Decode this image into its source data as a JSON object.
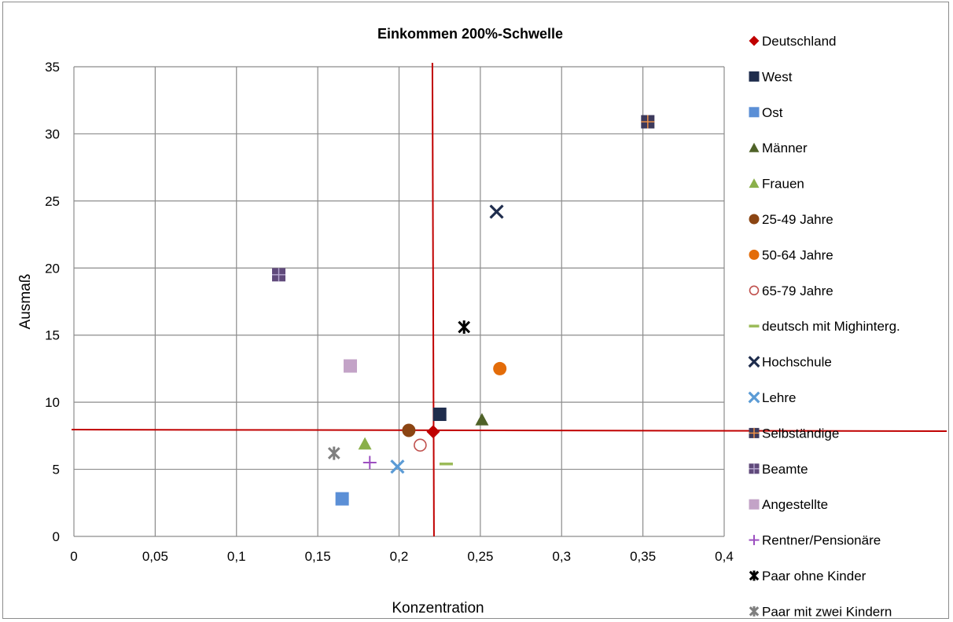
{
  "chart_data": {
    "type": "scatter",
    "title": "Einkommen 200%-Schwelle",
    "xlabel": "Konzentration",
    "ylabel": "Ausmaß",
    "xlim": [
      0,
      0.4
    ],
    "ylim": [
      0,
      35
    ],
    "x_ticks": [
      "0",
      "0,05",
      "0,1",
      "0,15",
      "0,2",
      "0,25",
      "0,3",
      "0,35",
      "0,4"
    ],
    "y_ticks": [
      "0",
      "5",
      "10",
      "15",
      "20",
      "25",
      "30",
      "35"
    ],
    "grid": true,
    "legend_position": "right",
    "reference_lines": {
      "vertical_x": 0.221,
      "horizontal_y": 7.9,
      "color": "#c00000"
    },
    "series": [
      {
        "name": "Deutschland",
        "x": 0.221,
        "y": 7.8,
        "marker": "diamond",
        "color": "#c00000"
      },
      {
        "name": "West",
        "x": 0.225,
        "y": 9.1,
        "marker": "square",
        "color": "#1f2d4d"
      },
      {
        "name": "Ost",
        "x": 0.165,
        "y": 2.8,
        "marker": "square",
        "color": "#5b8fd6"
      },
      {
        "name": "Männer",
        "x": 0.251,
        "y": 8.7,
        "marker": "triangle",
        "color": "#4f6228"
      },
      {
        "name": "Frauen",
        "x": 0.179,
        "y": 6.9,
        "marker": "triangle",
        "color": "#8ab04a"
      },
      {
        "name": "25-49 Jahre",
        "x": 0.206,
        "y": 7.9,
        "marker": "circle",
        "color": "#8b4513"
      },
      {
        "name": "50-64 Jahre",
        "x": 0.262,
        "y": 12.5,
        "marker": "circle",
        "color": "#e36c09"
      },
      {
        "name": "65-79 Jahre",
        "x": 0.213,
        "y": 6.8,
        "marker": "circle-open",
        "color": "#c0504d"
      },
      {
        "name": "deutsch mit Mighinterg.",
        "x": 0.229,
        "y": 5.4,
        "marker": "dash",
        "color": "#9bbb59"
      },
      {
        "name": "Hochschule",
        "x": 0.26,
        "y": 24.2,
        "marker": "x",
        "color": "#1f2d4d"
      },
      {
        "name": "Lehre",
        "x": 0.199,
        "y": 5.2,
        "marker": "x",
        "color": "#5b9bd5"
      },
      {
        "name": "Selbständige",
        "x": 0.353,
        "y": 30.9,
        "marker": "square-plus",
        "color": "#3d3a5c",
        "accent": "#f79646"
      },
      {
        "name": "Beamte",
        "x": 0.126,
        "y": 19.5,
        "marker": "square-plus",
        "color": "#604a7b",
        "accent": "#b7a9d1"
      },
      {
        "name": "Angestellte",
        "x": 0.17,
        "y": 12.7,
        "marker": "square",
        "color": "#c3a3c7"
      },
      {
        "name": "Rentner/Pensionäre",
        "x": 0.182,
        "y": 5.5,
        "marker": "plus",
        "color": "#9c4fc0"
      },
      {
        "name": "Paar ohne Kinder",
        "x": 0.24,
        "y": 15.6,
        "marker": "asterisk",
        "color": "#000000"
      },
      {
        "name": "Paar mit zwei Kindern",
        "x": 0.16,
        "y": 6.2,
        "marker": "asterisk",
        "color": "#7f7f7f"
      }
    ]
  }
}
